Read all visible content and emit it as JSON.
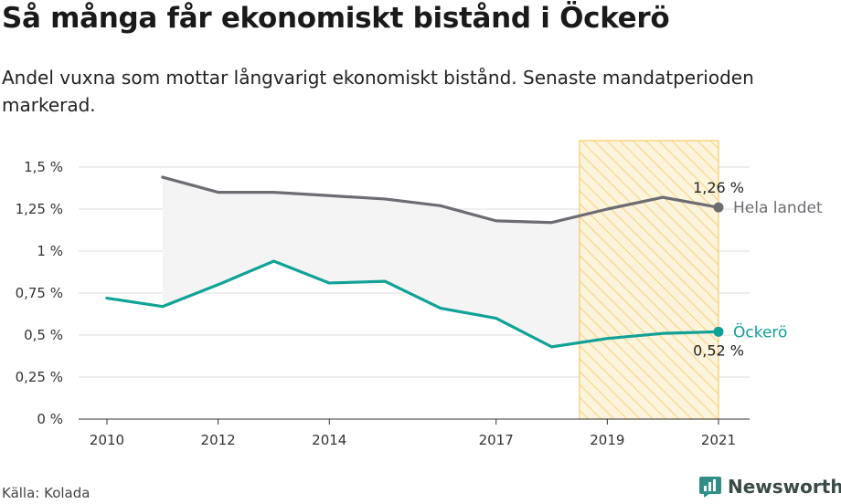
{
  "title": "Så många får ekonomiskt bistånd i Öckerö",
  "subtitle": "Andel vuxna som mottar långvarigt ekonomiskt bistånd. Senaste mandatperioden markerad.",
  "source": "Källa: Kolada",
  "brand": "Newsworthy",
  "colors": {
    "national": "#6e6c73",
    "local": "#10a296",
    "highlight": "#f5c24b",
    "shade": "#f4f4f4"
  },
  "chart_data": {
    "type": "line",
    "title": "Så många får ekonomiskt bistånd i Öckerö",
    "subtitle": "Andel vuxna som mottar långvarigt ekonomiskt bistånd. Senaste mandatperioden markerad.",
    "xlabel": "",
    "ylabel": "",
    "xlim": [
      2010,
      2021
    ],
    "ylim": [
      0,
      1.5
    ],
    "x_ticks": [
      2010,
      2012,
      2014,
      2017,
      2019,
      2021
    ],
    "y_ticks": [
      0,
      0.25,
      0.5,
      0.75,
      1,
      1.25,
      1.5
    ],
    "y_tick_labels": [
      "0 %",
      "0,25 %",
      "0,5 %",
      "0,75 %",
      "1 %",
      "1,25 %",
      "1,5 %"
    ],
    "grid": true,
    "highlight_period": [
      2018.5,
      2021
    ],
    "series": [
      {
        "name": "Hela landet",
        "color": "#6e6c73",
        "x": [
          2011,
          2012,
          2013,
          2014,
          2015,
          2016,
          2017,
          2018,
          2019,
          2020,
          2021
        ],
        "values": [
          1.44,
          1.35,
          1.35,
          1.33,
          1.31,
          1.27,
          1.18,
          1.17,
          1.25,
          1.32,
          1.26
        ],
        "end_label": "1,26 %"
      },
      {
        "name": "Öckerö",
        "color": "#10a296",
        "x": [
          2010,
          2011,
          2012,
          2013,
          2014,
          2015,
          2016,
          2017,
          2018,
          2019,
          2020,
          2021
        ],
        "values": [
          0.72,
          0.67,
          0.8,
          0.94,
          0.81,
          0.82,
          0.66,
          0.6,
          0.43,
          0.48,
          0.51,
          0.52
        ],
        "end_label": "0,52 %"
      }
    ]
  }
}
